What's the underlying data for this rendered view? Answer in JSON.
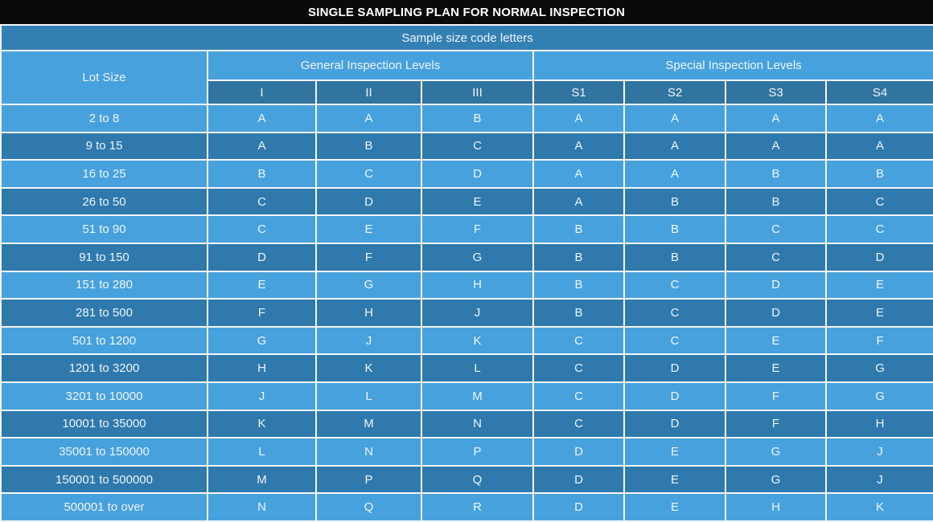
{
  "title": "SINGLE SAMPLING PLAN FOR NORMAL INSPECTION",
  "subtitle": "Sample size code letters",
  "table": {
    "lot_size_header": "Lot Size",
    "groups": [
      {
        "label": "General Inspection Levels",
        "columns": [
          "I",
          "II",
          "III"
        ]
      },
      {
        "label": "Special Inspection Levels",
        "columns": [
          "S1",
          "S2",
          "S3",
          "S4"
        ]
      }
    ],
    "rows": [
      {
        "lot_size": "2 to 8",
        "values": [
          "A",
          "A",
          "B",
          "A",
          "A",
          "A",
          "A"
        ]
      },
      {
        "lot_size": "9 to 15",
        "values": [
          "A",
          "B",
          "C",
          "A",
          "A",
          "A",
          "A"
        ]
      },
      {
        "lot_size": "16 to 25",
        "values": [
          "B",
          "C",
          "D",
          "A",
          "A",
          "B",
          "B"
        ]
      },
      {
        "lot_size": "26 to 50",
        "values": [
          "C",
          "D",
          "E",
          "A",
          "B",
          "B",
          "C"
        ]
      },
      {
        "lot_size": "51 to 90",
        "values": [
          "C",
          "E",
          "F",
          "B",
          "B",
          "C",
          "C"
        ]
      },
      {
        "lot_size": "91 to 150",
        "values": [
          "D",
          "F",
          "G",
          "B",
          "B",
          "C",
          "D"
        ]
      },
      {
        "lot_size": "151 to 280",
        "values": [
          "E",
          "G",
          "H",
          "B",
          "C",
          "D",
          "E"
        ]
      },
      {
        "lot_size": "281 to 500",
        "values": [
          "F",
          "H",
          "J",
          "B",
          "C",
          "D",
          "E"
        ]
      },
      {
        "lot_size": "501 to 1200",
        "values": [
          "G",
          "J",
          "K",
          "C",
          "C",
          "E",
          "F"
        ]
      },
      {
        "lot_size": "1201 to 3200",
        "values": [
          "H",
          "K",
          "L",
          "C",
          "D",
          "E",
          "G"
        ]
      },
      {
        "lot_size": "3201 to 10000",
        "values": [
          "J",
          "L",
          "M",
          "C",
          "D",
          "F",
          "G"
        ]
      },
      {
        "lot_size": "10001 to 35000",
        "values": [
          "K",
          "M",
          "N",
          "C",
          "D",
          "F",
          "H"
        ]
      },
      {
        "lot_size": "35001 to 150000",
        "values": [
          "L",
          "N",
          "P",
          "D",
          "E",
          "G",
          "J"
        ]
      },
      {
        "lot_size": "150001 to 500000",
        "values": [
          "M",
          "P",
          "Q",
          "D",
          "E",
          "G",
          "J"
        ]
      },
      {
        "lot_size": "500001 to over",
        "values": [
          "N",
          "Q",
          "R",
          "D",
          "E",
          "H",
          "K"
        ]
      }
    ]
  },
  "colors": {
    "title_bar_bg": "#0a0a0a",
    "subtitle_bg": "#3380b4",
    "subheader_bg": "#31749f",
    "row_light": "#47a1dc",
    "row_dark": "#2f79ac",
    "grid_line": "#f4f6f7",
    "text": "#eef5fa"
  }
}
